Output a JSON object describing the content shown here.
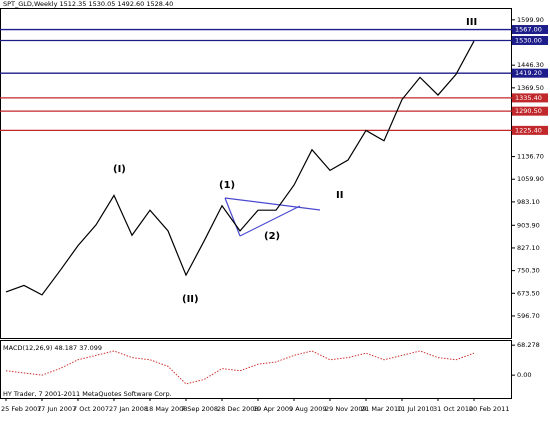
{
  "chart_data": [
    {
      "type": "line",
      "header": "SPT_GLD,Weekly  1512.35 1530.05 1492.60 1528.40",
      "footer": "HY Trader, 7 2001-2011 MetaQuotes Software Corp.",
      "color": "#000000",
      "categories": [
        "25 Feb 2007",
        null,
        "17 Jun 2007",
        null,
        "7 Oct 2007",
        null,
        "27 Jan 2008",
        null,
        "18 May 2008",
        null,
        "7 Sep 2008",
        null,
        "28 Dec 2008",
        null,
        "19 Apr 2009",
        null,
        "9 Aug 2009",
        null,
        "29 Nov 2009",
        null,
        "21 Mar 2010",
        null,
        "11 Jul 2010",
        null,
        "31 Oct 2010",
        null,
        "20 Feb 2011"
      ],
      "values": [
        678,
        700,
        668,
        750,
        835,
        905,
        1005,
        870,
        955,
        885,
        735,
        850,
        970,
        885,
        955,
        955,
        1040,
        1160,
        1090,
        1125,
        1225,
        1190,
        1330,
        1405,
        1345,
        1415,
        1528
      ],
      "ylim": [
        522,
        1640
      ],
      "yticks": [
        {
          "value": 1599.9,
          "label": "1599.90"
        },
        {
          "value": 1446.3,
          "label": "1446.30"
        },
        {
          "value": 1369.5,
          "label": "1369.50"
        },
        {
          "value": 1136.7,
          "label": "1136.70"
        },
        {
          "value": 1059.9,
          "label": "1059.90"
        },
        {
          "value": 983.1,
          "label": "983.10"
        },
        {
          "value": 903.9,
          "label": "903.90"
        },
        {
          "value": 827.1,
          "label": "827.10"
        },
        {
          "value": 750.3,
          "label": "750.30"
        },
        {
          "value": 673.5,
          "label": "673.50"
        },
        {
          "value": 596.7,
          "label": "596.70"
        }
      ],
      "levels": [
        {
          "value": 1567,
          "label": "1567.00",
          "color": "#1c1c8a"
        },
        {
          "value": 1530,
          "label": "1530.00",
          "color": "#1c1c8a"
        },
        {
          "value": 1419.2,
          "label": "1419.20",
          "color": "#1c1c8a"
        },
        {
          "value": 1335.4,
          "label": "1335.40",
          "color": "#c0282c"
        },
        {
          "value": 1290.5,
          "label": "1290.50",
          "color": "#c0282c"
        },
        {
          "value": 1225.4,
          "label": "1225.40",
          "color": "#c0282c"
        }
      ],
      "annotations": [
        "(I)",
        "(II)",
        "(1)",
        "(2)",
        "II",
        "III"
      ]
    },
    {
      "type": "line",
      "title": "MACD(12,26,9) 48.187 37.099",
      "color": "#d03030",
      "values": [
        10,
        5,
        0,
        15,
        35,
        45,
        55,
        40,
        35,
        20,
        -20,
        -10,
        15,
        10,
        25,
        30,
        45,
        55,
        35,
        40,
        50,
        35,
        45,
        55,
        40,
        35,
        50
      ],
      "ylim": [
        -52,
        80
      ],
      "yticks": [
        {
          "value": 68.278,
          "label": "68.278"
        },
        {
          "value": 0,
          "label": "0.00"
        }
      ]
    }
  ]
}
